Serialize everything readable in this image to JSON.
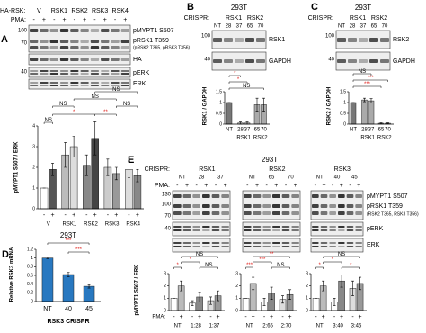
{
  "panels": {
    "A": {
      "letter": "A",
      "ha_label": "HA-RSK:",
      "pma_label": "PMA:",
      "groups": [
        "V",
        "RSK1",
        "RSK2",
        "RSK3",
        "RSK4"
      ],
      "pma": [
        "-",
        "+",
        "-",
        "+",
        "-",
        "+",
        "-",
        "+",
        "-",
        "+"
      ],
      "mw": [
        100,
        70,
        40
      ],
      "bands": [
        "pMYPT1 S507",
        "pRSK1 T359",
        "(pRSK2 T365, pRSK3 T356)",
        "HA",
        "pERK",
        "ERK"
      ]
    },
    "B": {
      "letter": "B",
      "title": "293T",
      "crispr_label": "CRISPR:",
      "groups": [
        "RSK1",
        "RSK2"
      ],
      "lanes": [
        "NT",
        "28",
        "37",
        "65",
        "70"
      ],
      "mw": [
        100,
        40
      ],
      "bands": [
        "RSK1",
        "GAPDH"
      ]
    },
    "C": {
      "letter": "C",
      "title": "293T",
      "crispr_label": "CRISPR:",
      "groups": [
        "RSK1",
        "RSK2"
      ],
      "lanes": [
        "NT",
        "28",
        "37",
        "65",
        "70"
      ],
      "mw": [
        100,
        40
      ],
      "bands": [
        "RSK2",
        "GAPDH"
      ]
    },
    "D": {
      "letter": "D"
    },
    "E": {
      "letter": "E",
      "title": "293T",
      "crispr_label": "CRISPR:",
      "pma_label": "PMA:",
      "groups": [
        "RSK1",
        "RSK2",
        "RSK3"
      ],
      "lanes": [
        "NT",
        "28",
        "37",
        "NT",
        "65",
        "70",
        "NT",
        "40",
        "45"
      ],
      "pma": [
        "-",
        "+",
        "-",
        "+",
        "-",
        "+",
        "-",
        "+",
        "-",
        "+",
        "-",
        "+",
        "-",
        "+",
        "-",
        "+",
        "-",
        "+"
      ],
      "mw": [
        130,
        100,
        70,
        40
      ],
      "bands": [
        "pMYPT1 S507",
        "pRSK1 T359",
        "(RSK2 T365, RSK3 T356)",
        "pERK",
        "ERK"
      ]
    }
  },
  "chart_data": [
    {
      "type": "bar",
      "ylabel": "pMYPT1 S507 / ERK",
      "categories": [
        "-",
        "+",
        "-",
        "+",
        "-",
        "+",
        "-",
        "+",
        "-",
        "+"
      ],
      "groups": [
        "V",
        "RSK1",
        "RSK2",
        "RSK3",
        "RSK4"
      ],
      "values": [
        1.0,
        1.9,
        2.6,
        3.0,
        2.1,
        3.4,
        2.0,
        1.7,
        1.9,
        1.6
      ],
      "errors": [
        0,
        0.3,
        0.6,
        0.5,
        0.5,
        0.8,
        0.4,
        0.3,
        0.4,
        0.3
      ],
      "colors": [
        "#ffffff",
        "#555555",
        "#bbbbbb",
        "#dddddd",
        "#888888",
        "#444444",
        "#cccccc",
        "#999999",
        "#dddddd",
        "#888888"
      ],
      "ylim": [
        0,
        4
      ],
      "yticks": [
        0,
        1,
        2,
        3,
        4
      ],
      "annotations": [
        {
          "text": "NS",
          "color": "#000000"
        },
        {
          "text": "NS",
          "color": "#000000"
        },
        {
          "text": "NS",
          "color": "#000000"
        },
        {
          "text": "NS",
          "color": "#000000"
        },
        {
          "text": "*",
          "color": "#e0201b"
        },
        {
          "text": "**",
          "color": "#e0201b"
        },
        {
          "text": "NS",
          "color": "#000000"
        }
      ]
    },
    {
      "type": "bar",
      "ylabel": "RSK1 / GAPDH",
      "categories": [
        "NT",
        "28",
        "37",
        "65",
        "70"
      ],
      "groups": [
        "RSK1",
        "RSK2"
      ],
      "values": [
        1.0,
        0.05,
        0.05,
        0.9,
        0.9
      ],
      "errors": [
        0,
        0.05,
        0.05,
        0.3,
        0.3
      ],
      "colors": [
        "#777777",
        "#cccccc",
        "#cccccc",
        "#aaaaaa",
        "#aaaaaa"
      ],
      "ylim": [
        0,
        1.5
      ],
      "yticks": [
        0,
        0.5,
        1,
        1.5
      ],
      "annotations": [
        {
          "text": "*",
          "color": "#e0201b"
        },
        {
          "text": "*",
          "color": "#e0201b"
        },
        {
          "text": "NS",
          "color": "#000000"
        }
      ]
    },
    {
      "type": "bar",
      "ylabel": "RSK2 / GAPDH",
      "categories": [
        "NT",
        "28",
        "37",
        "65",
        "70"
      ],
      "groups": [
        "RSK1",
        "RSK2"
      ],
      "values": [
        1.0,
        1.12,
        1.08,
        0.04,
        0.04
      ],
      "errors": [
        0,
        0.08,
        0.1,
        0.02,
        0.02
      ],
      "colors": [
        "#777777",
        "#aaaaaa",
        "#aaaaaa",
        "#cccccc",
        "#cccccc"
      ],
      "ylim": [
        0,
        1.5
      ],
      "yticks": [
        0,
        0.5,
        1,
        1.5
      ],
      "annotations": [
        {
          "text": "NS",
          "color": "#000000"
        },
        {
          "text": "***",
          "color": "#e0201b"
        },
        {
          "text": "***",
          "color": "#e0201b"
        }
      ]
    },
    {
      "type": "bar",
      "title": "293T",
      "ylabel": "Relative RSK3 mRNA",
      "xlabel": "RSK3 CRISPR",
      "categories": [
        "NT",
        "40",
        "45"
      ],
      "values": [
        1.0,
        0.62,
        0.35
      ],
      "errors": [
        0.02,
        0.05,
        0.04
      ],
      "color": "#2878c0",
      "ylim": [
        0,
        1.2
      ],
      "yticks": [
        0,
        0.2,
        0.4,
        0.6,
        0.8,
        1,
        1.2
      ],
      "annotations": [
        {
          "text": "***",
          "color": "#e0201b"
        },
        {
          "text": "***",
          "color": "#e0201b"
        }
      ]
    },
    {
      "type": "bar",
      "ylabel": "pMYPT1 S507 / ERK",
      "pma_label": "PMA:",
      "categories": [
        "-",
        "+",
        "-",
        "+",
        "-",
        "+"
      ],
      "groups": [
        "NT",
        "1:28",
        "1:37"
      ],
      "values": [
        1.0,
        2.0,
        0.6,
        1.1,
        0.8,
        1.2
      ],
      "errors": [
        0,
        0.4,
        0.2,
        0.4,
        0.3,
        0.4
      ],
      "colors": [
        "#ffffff",
        "#bbbbbb",
        "#ffffff",
        "#888888",
        "#dddddd",
        "#999999"
      ],
      "ylim": [
        0,
        3
      ],
      "yticks": [
        0,
        1,
        2,
        3
      ],
      "annotations": [
        {
          "text": "*",
          "color": "#e0201b"
        },
        {
          "text": "*",
          "color": "#e0201b"
        },
        {
          "text": "NS",
          "color": "#000000"
        },
        {
          "text": "NS",
          "color": "#000000"
        }
      ]
    },
    {
      "type": "bar",
      "categories": [
        "-",
        "+",
        "-",
        "+",
        "-",
        "+"
      ],
      "groups": [
        "NT",
        "2:65",
        "2:70"
      ],
      "values": [
        1.0,
        2.2,
        0.7,
        1.4,
        0.9,
        1.3
      ],
      "errors": [
        0,
        0.5,
        0.3,
        0.5,
        0.3,
        0.4
      ],
      "colors": [
        "#ffffff",
        "#bbbbbb",
        "#ffffff",
        "#888888",
        "#dddddd",
        "#999999"
      ],
      "ylim": [
        0,
        3
      ],
      "yticks": [
        0,
        1,
        2,
        3
      ],
      "annotations": [
        {
          "text": "***",
          "color": "#e0201b"
        },
        {
          "text": "***",
          "color": "#e0201b"
        },
        {
          "text": "**",
          "color": "#e0201b"
        },
        {
          "text": "NS",
          "color": "#000000"
        }
      ]
    },
    {
      "type": "bar",
      "categories": [
        "-",
        "+",
        "-",
        "+",
        "-",
        "+"
      ],
      "groups": [
        "NT",
        "3:40",
        "3:45"
      ],
      "values": [
        1.0,
        2.0,
        0.7,
        2.4,
        1.8,
        2.2
      ],
      "errors": [
        0,
        0.4,
        0.3,
        0.5,
        0.6,
        0.5
      ],
      "colors": [
        "#ffffff",
        "#bbbbbb",
        "#ffffff",
        "#888888",
        "#dddddd",
        "#999999"
      ],
      "ylim": [
        0,
        3
      ],
      "yticks": [
        0,
        1,
        2,
        3
      ],
      "annotations": [
        {
          "text": "*",
          "color": "#e0201b"
        },
        {
          "text": "*",
          "color": "#e0201b"
        },
        {
          "text": "NS",
          "color": "#000000"
        },
        {
          "text": "*",
          "color": "#e0201b"
        }
      ]
    }
  ]
}
